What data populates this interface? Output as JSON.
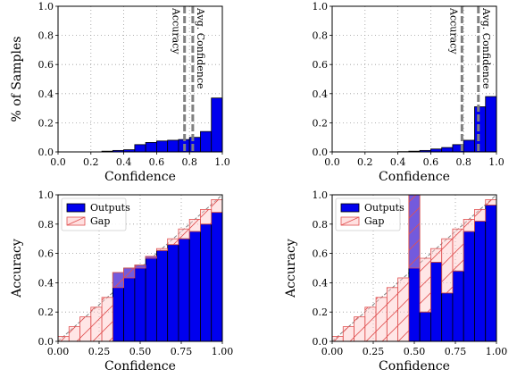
{
  "chart_data": [
    {
      "type": "bar",
      "panel": "top-left",
      "xlabel": "Confidence",
      "ylabel": "% of Samples",
      "xlim": [
        0.0,
        1.0
      ],
      "ylim": [
        0.0,
        1.0
      ],
      "xticks": [
        "0.0",
        "0.2",
        "0.4",
        "0.6",
        "0.8",
        "1.0"
      ],
      "yticks": [
        "0.0",
        "0.2",
        "0.4",
        "0.6",
        "0.8",
        "1.0"
      ],
      "grid": true,
      "bin_edges": [
        0.0,
        0.0667,
        0.1333,
        0.2,
        0.2667,
        0.3333,
        0.4,
        0.4667,
        0.5333,
        0.6,
        0.6667,
        0.7333,
        0.8,
        0.8667,
        0.9333,
        1.0
      ],
      "values": [
        0.0,
        0.0,
        0.0,
        0.0,
        0.005,
        0.01,
        0.015,
        0.05,
        0.065,
        0.075,
        0.08,
        0.085,
        0.1,
        0.14,
        0.37
      ],
      "bar_color": "#0000ee",
      "vlines": [
        {
          "label": "Accuracy",
          "x": 0.77
        },
        {
          "label": "Avg. Confidence",
          "x": 0.82
        }
      ]
    },
    {
      "type": "bar",
      "panel": "top-right",
      "xlabel": "Confidence",
      "ylabel": "",
      "xlim": [
        0.0,
        1.0
      ],
      "ylim": [
        0.0,
        1.0
      ],
      "xticks": [
        "0.0",
        "0.2",
        "0.4",
        "0.6",
        "0.8",
        "1.0"
      ],
      "yticks": [
        "0.0",
        "0.2",
        "0.4",
        "0.6",
        "0.8",
        "1.0"
      ],
      "grid": true,
      "bin_edges": [
        0.0,
        0.0667,
        0.1333,
        0.2,
        0.2667,
        0.3333,
        0.4,
        0.4667,
        0.5333,
        0.6,
        0.6667,
        0.7333,
        0.8,
        0.8667,
        0.9333,
        1.0
      ],
      "values": [
        0.0,
        0.0,
        0.0,
        0.0,
        0.0,
        0.0,
        0.002,
        0.005,
        0.01,
        0.02,
        0.03,
        0.05,
        0.08,
        0.31,
        0.38
      ],
      "bar_color": "#0000ee",
      "vlines": [
        {
          "label": "Accuracy",
          "x": 0.79
        },
        {
          "label": "Avg. Confidence",
          "x": 0.89
        }
      ]
    },
    {
      "type": "bar",
      "panel": "bottom-left",
      "xlabel": "Confidence",
      "ylabel": "Accuracy",
      "xlim": [
        0.0,
        1.0
      ],
      "ylim": [
        0.0,
        1.0
      ],
      "xticks": [
        "0.00",
        "0.25",
        "0.50",
        "0.75",
        "1.00"
      ],
      "yticks": [
        "0.0",
        "0.2",
        "0.4",
        "0.6",
        "0.8",
        "1.0"
      ],
      "grid": true,
      "legend": {
        "placement": "top-left",
        "entries": [
          "Outputs",
          "Gap"
        ]
      },
      "bin_edges": [
        0.0,
        0.0667,
        0.1333,
        0.2,
        0.2667,
        0.3333,
        0.4,
        0.4667,
        0.5333,
        0.6,
        0.6667,
        0.7333,
        0.8,
        0.8667,
        0.9333,
        1.0
      ],
      "outputs": [
        0.0,
        0.0,
        0.0,
        0.0,
        0.0,
        0.47,
        0.5,
        0.52,
        0.58,
        0.62,
        0.66,
        0.7,
        0.75,
        0.8,
        0.88
      ],
      "gap_top": [
        0.033,
        0.1,
        0.167,
        0.233,
        0.3,
        0.367,
        0.433,
        0.5,
        0.567,
        0.633,
        0.7,
        0.767,
        0.833,
        0.9,
        0.967
      ]
    },
    {
      "type": "bar",
      "panel": "bottom-right",
      "xlabel": "Confidence",
      "ylabel": "Accuracy",
      "xlim": [
        0.0,
        1.0
      ],
      "ylim": [
        0.0,
        1.0
      ],
      "xticks": [
        "0.00",
        "0.25",
        "0.50",
        "0.75",
        "1.00"
      ],
      "yticks": [
        "0.0",
        "0.2",
        "0.4",
        "0.6",
        "0.8",
        "1.0"
      ],
      "grid": true,
      "legend": {
        "placement": "top-left",
        "entries": [
          "Outputs",
          "Gap"
        ]
      },
      "bin_edges": [
        0.0,
        0.0667,
        0.1333,
        0.2,
        0.2667,
        0.3333,
        0.4,
        0.4667,
        0.5333,
        0.6,
        0.6667,
        0.7333,
        0.8,
        0.8667,
        0.9333,
        1.0
      ],
      "outputs": [
        0.0,
        0.0,
        0.0,
        0.0,
        0.0,
        0.0,
        0.0,
        1.0,
        0.2,
        0.54,
        0.33,
        0.48,
        0.75,
        0.82,
        0.93
      ],
      "gap_top": [
        0.033,
        0.1,
        0.167,
        0.233,
        0.3,
        0.367,
        0.433,
        0.5,
        0.567,
        0.633,
        0.7,
        0.767,
        0.833,
        0.9,
        0.967
      ]
    }
  ]
}
